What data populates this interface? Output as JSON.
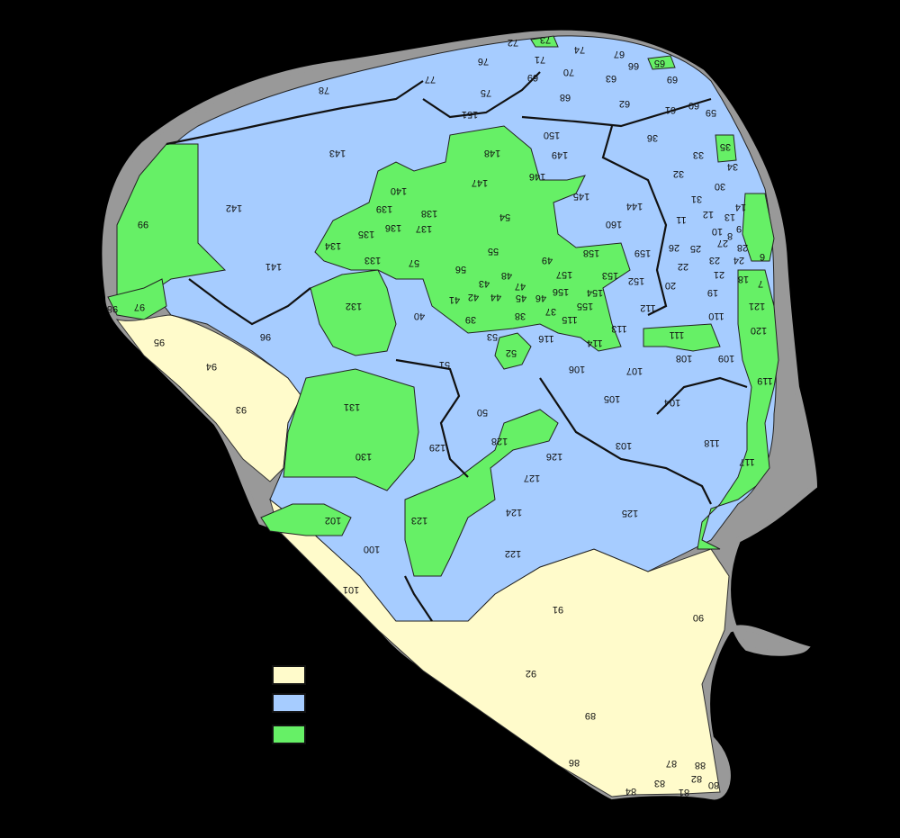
{
  "map": {
    "colors": {
      "sea_background": "#000000",
      "class_yellow": "#FFFBCB",
      "class_blue": "#A6CCFF",
      "class_green": "#66F066",
      "outline": "#999999",
      "border_major": "#111111"
    },
    "district_labels": [
      {
        "id": "d78",
        "text": "78"
      },
      {
        "id": "d77",
        "text": "77"
      },
      {
        "id": "d76",
        "text": "76"
      },
      {
        "id": "d75",
        "text": "75"
      },
      {
        "id": "d72",
        "text": "72"
      },
      {
        "id": "d73",
        "text": "73"
      },
      {
        "id": "d74",
        "text": "74"
      },
      {
        "id": "d71",
        "text": "71"
      },
      {
        "id": "d70",
        "text": "70"
      },
      {
        "id": "d69",
        "text": "69"
      },
      {
        "id": "d67",
        "text": "67"
      },
      {
        "id": "d66",
        "text": "66"
      },
      {
        "id": "d65",
        "text": "65"
      },
      {
        "id": "d63",
        "text": "63"
      },
      {
        "id": "d69b",
        "text": "69"
      },
      {
        "id": "d68",
        "text": "68"
      },
      {
        "id": "d62",
        "text": "62"
      },
      {
        "id": "d61",
        "text": "61"
      },
      {
        "id": "d60",
        "text": "60"
      },
      {
        "id": "d59",
        "text": "59"
      },
      {
        "id": "d151",
        "text": "151"
      },
      {
        "id": "d150",
        "text": "150"
      },
      {
        "id": "d36",
        "text": "36"
      },
      {
        "id": "d35",
        "text": "35"
      },
      {
        "id": "d143",
        "text": "143"
      },
      {
        "id": "d148",
        "text": "148"
      },
      {
        "id": "d149",
        "text": "149"
      },
      {
        "id": "d33",
        "text": "33"
      },
      {
        "id": "d34",
        "text": "34"
      },
      {
        "id": "d146",
        "text": "146"
      },
      {
        "id": "d147",
        "text": "147"
      },
      {
        "id": "d32",
        "text": "32"
      },
      {
        "id": "d30",
        "text": "30"
      },
      {
        "id": "d140",
        "text": "140"
      },
      {
        "id": "d145",
        "text": "145"
      },
      {
        "id": "d31",
        "text": "31"
      },
      {
        "id": "d99",
        "text": "99"
      },
      {
        "id": "d142",
        "text": "142"
      },
      {
        "id": "d139",
        "text": "139"
      },
      {
        "id": "d138",
        "text": "138"
      },
      {
        "id": "d144",
        "text": "144"
      },
      {
        "id": "d14",
        "text": "14"
      },
      {
        "id": "d12",
        "text": "12"
      },
      {
        "id": "d13",
        "text": "13"
      },
      {
        "id": "d54",
        "text": "54"
      },
      {
        "id": "d160",
        "text": "160"
      },
      {
        "id": "d11",
        "text": "11"
      },
      {
        "id": "d136",
        "text": "136"
      },
      {
        "id": "d137",
        "text": "137"
      },
      {
        "id": "d135",
        "text": "135"
      },
      {
        "id": "d10",
        "text": "10"
      },
      {
        "id": "d9",
        "text": "9"
      },
      {
        "id": "d134",
        "text": "134"
      },
      {
        "id": "d55",
        "text": "55"
      },
      {
        "id": "d26",
        "text": "26"
      },
      {
        "id": "d25",
        "text": "25"
      },
      {
        "id": "d8",
        "text": "8"
      },
      {
        "id": "d27",
        "text": "27"
      },
      {
        "id": "d28",
        "text": "28"
      },
      {
        "id": "d133",
        "text": "133"
      },
      {
        "id": "d57",
        "text": "57"
      },
      {
        "id": "d49",
        "text": "49"
      },
      {
        "id": "d158",
        "text": "158"
      },
      {
        "id": "d159",
        "text": "159"
      },
      {
        "id": "d23",
        "text": "23"
      },
      {
        "id": "d24",
        "text": "24"
      },
      {
        "id": "d6",
        "text": "6"
      },
      {
        "id": "d141",
        "text": "141"
      },
      {
        "id": "d56",
        "text": "56"
      },
      {
        "id": "d48",
        "text": "48"
      },
      {
        "id": "d22",
        "text": "22"
      },
      {
        "id": "d21",
        "text": "21"
      },
      {
        "id": "d157",
        "text": "157"
      },
      {
        "id": "d153",
        "text": "153"
      },
      {
        "id": "d18",
        "text": "18"
      },
      {
        "id": "d43",
        "text": "43"
      },
      {
        "id": "d47",
        "text": "47"
      },
      {
        "id": "d152",
        "text": "152"
      },
      {
        "id": "d20",
        "text": "20"
      },
      {
        "id": "d7",
        "text": "7"
      },
      {
        "id": "d154",
        "text": "154"
      },
      {
        "id": "d156",
        "text": "156"
      },
      {
        "id": "d19",
        "text": "19"
      },
      {
        "id": "d97",
        "text": "97"
      },
      {
        "id": "d132",
        "text": "132"
      },
      {
        "id": "d41",
        "text": "41"
      },
      {
        "id": "d42",
        "text": "42"
      },
      {
        "id": "d45",
        "text": "45"
      },
      {
        "id": "d46",
        "text": "46"
      },
      {
        "id": "d44",
        "text": "44"
      },
      {
        "id": "d121",
        "text": "121"
      },
      {
        "id": "d98",
        "text": "98"
      },
      {
        "id": "d155",
        "text": "155"
      },
      {
        "id": "d112",
        "text": "112"
      },
      {
        "id": "d40",
        "text": "40"
      },
      {
        "id": "d37",
        "text": "37"
      },
      {
        "id": "d110",
        "text": "110"
      },
      {
        "id": "d38",
        "text": "38"
      },
      {
        "id": "d39",
        "text": "39"
      },
      {
        "id": "d115",
        "text": "115"
      },
      {
        "id": "d113",
        "text": "113"
      },
      {
        "id": "d96",
        "text": "96"
      },
      {
        "id": "d53",
        "text": "53"
      },
      {
        "id": "d116",
        "text": "116"
      },
      {
        "id": "d111",
        "text": "111"
      },
      {
        "id": "d120",
        "text": "120"
      },
      {
        "id": "d95",
        "text": "95"
      },
      {
        "id": "d114",
        "text": "114"
      },
      {
        "id": "d52",
        "text": "52"
      },
      {
        "id": "d108",
        "text": "108"
      },
      {
        "id": "d109",
        "text": "109"
      },
      {
        "id": "d94",
        "text": "94"
      },
      {
        "id": "d51",
        "text": "51"
      },
      {
        "id": "d106",
        "text": "106"
      },
      {
        "id": "d107",
        "text": "107"
      },
      {
        "id": "d119",
        "text": "119"
      },
      {
        "id": "d131",
        "text": "131"
      },
      {
        "id": "d105",
        "text": "105"
      },
      {
        "id": "d104",
        "text": "104"
      },
      {
        "id": "d93",
        "text": "93"
      },
      {
        "id": "d50",
        "text": "50"
      },
      {
        "id": "d128",
        "text": "128"
      },
      {
        "id": "d103",
        "text": "103"
      },
      {
        "id": "d118",
        "text": "118"
      },
      {
        "id": "d129",
        "text": "129"
      },
      {
        "id": "d130",
        "text": "130"
      },
      {
        "id": "d126",
        "text": "126"
      },
      {
        "id": "d117",
        "text": "117"
      },
      {
        "id": "d127",
        "text": "127"
      },
      {
        "id": "d123",
        "text": "123"
      },
      {
        "id": "d124",
        "text": "124"
      },
      {
        "id": "d125",
        "text": "125"
      },
      {
        "id": "d102",
        "text": "102"
      },
      {
        "id": "d100",
        "text": "100"
      },
      {
        "id": "d122",
        "text": "122"
      },
      {
        "id": "d101",
        "text": "101"
      },
      {
        "id": "d91",
        "text": "91"
      },
      {
        "id": "d90",
        "text": "90"
      },
      {
        "id": "d92",
        "text": "92"
      },
      {
        "id": "d89",
        "text": "89"
      },
      {
        "id": "d86",
        "text": "86"
      },
      {
        "id": "d87",
        "text": "87"
      },
      {
        "id": "d88",
        "text": "88"
      },
      {
        "id": "d82",
        "text": "82"
      },
      {
        "id": "d83",
        "text": "83"
      },
      {
        "id": "d84",
        "text": "84"
      },
      {
        "id": "d81",
        "text": "81"
      },
      {
        "id": "d80",
        "text": "80"
      }
    ],
    "legend": [
      {
        "color": "#FFFBCB",
        "label": ""
      },
      {
        "color": "#A6CCFF",
        "label": ""
      },
      {
        "color": "#66F066",
        "label": ""
      }
    ]
  }
}
